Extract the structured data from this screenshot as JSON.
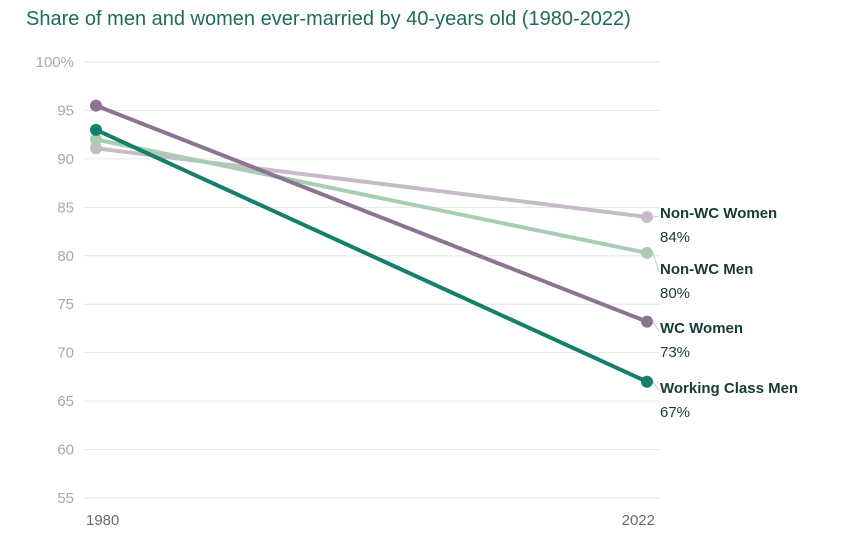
{
  "chart_data": {
    "type": "line",
    "title": "Share of men and women ever-married by 40-years old (1980-2022)",
    "xlabel": "",
    "ylabel": "",
    "x": [
      "1980",
      "2022"
    ],
    "ylim": [
      55,
      100
    ],
    "y_ticks": [
      "100%",
      "95",
      "90",
      "85",
      "80",
      "75",
      "70",
      "65",
      "60",
      "55"
    ],
    "grid": true,
    "series": [
      {
        "name": "Non-WC Women",
        "values": [
          91.1,
          84
        ],
        "label": "84%",
        "color": "#c8bbc9"
      },
      {
        "name": "Non-WC Men",
        "values": [
          92,
          80.3
        ],
        "label": "80%",
        "color": "#a9cdb3"
      },
      {
        "name": "WC Women",
        "values": [
          95.5,
          73.2
        ],
        "label": "73%",
        "color": "#8b7490"
      },
      {
        "name": "Working Class Men",
        "values": [
          93,
          67
        ],
        "label": "67%",
        "color": "#157f68"
      }
    ]
  }
}
